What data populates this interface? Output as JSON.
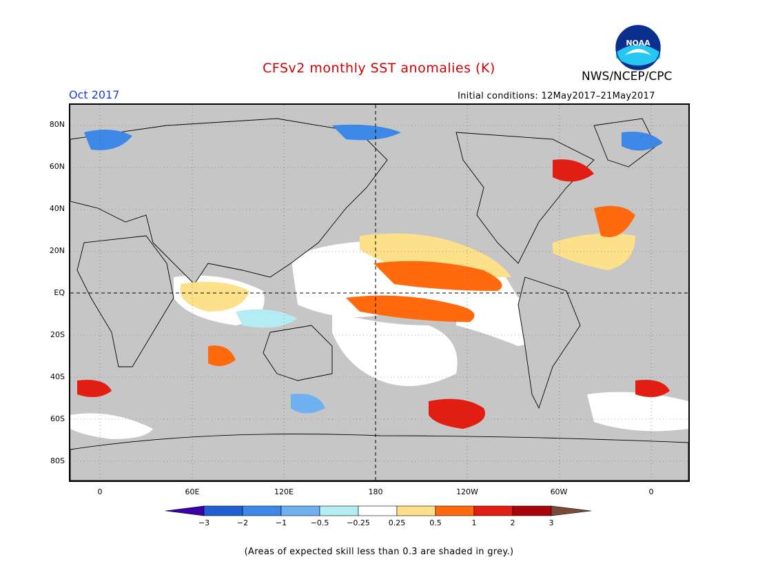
{
  "header": {
    "title": "CFSv2 monthly SST anomalies (K)",
    "agency": "NWS/NCEP/CPC",
    "logo_text": "NOAA",
    "valid_month": "Oct 2017",
    "initial_conditions": "Initial conditions: 12May2017–21May2017"
  },
  "map": {
    "projection": "cylindrical equidistant",
    "center_longitude": "180",
    "lat_labels": [
      "80N",
      "60N",
      "40N",
      "20N",
      "EQ",
      "20S",
      "40S",
      "60S",
      "80S"
    ],
    "lon_labels": [
      "0",
      "60E",
      "120E",
      "180",
      "120W",
      "60W",
      "0"
    ],
    "reference_lines": [
      "Equator (dashed)",
      "Dateline 180 (dashed)"
    ],
    "land_color": "#c6c6c6",
    "low_skill_color": "#c6c6c6"
  },
  "colorbar": {
    "labels": [
      "−3",
      "−2",
      "−1",
      "−0.5",
      "−0.25",
      "0.25",
      "0.5",
      "1",
      "2",
      "3"
    ],
    "colors": [
      "#3a00a8",
      "#1f5fd2",
      "#3d88e6",
      "#6fb0f0",
      "#b4ecf4",
      "#ffffff",
      "#fde08a",
      "#ff6a0f",
      "#e21d12",
      "#a8050a",
      "#7a4a38"
    ]
  },
  "footer": {
    "note": "(Areas of expected skill less than 0.3 are shaded in grey.)"
  }
}
